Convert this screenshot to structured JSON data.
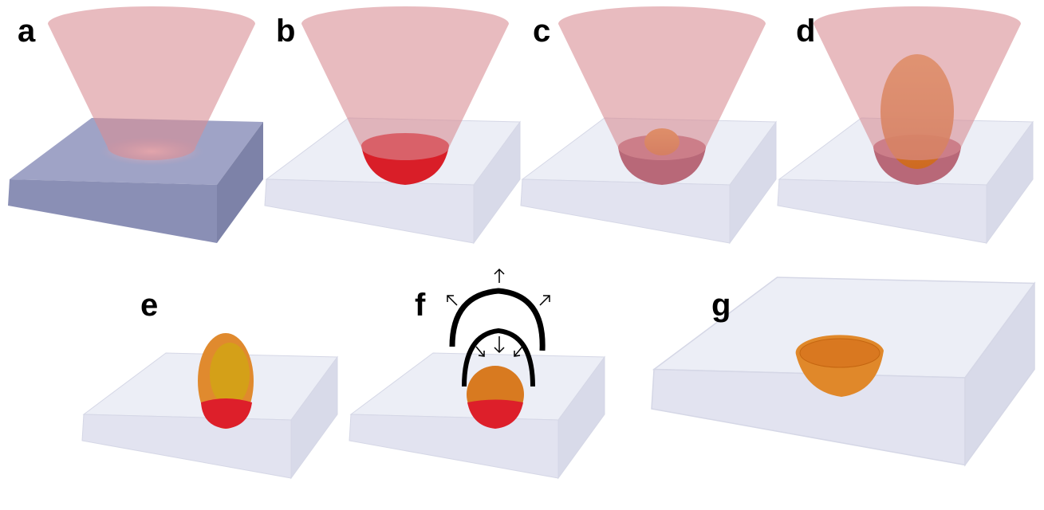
{
  "panels": [
    {
      "label": "a"
    },
    {
      "label": "b"
    },
    {
      "label": "c"
    },
    {
      "label": "d"
    },
    {
      "label": "e"
    },
    {
      "label": "f"
    },
    {
      "label": "g"
    }
  ]
}
